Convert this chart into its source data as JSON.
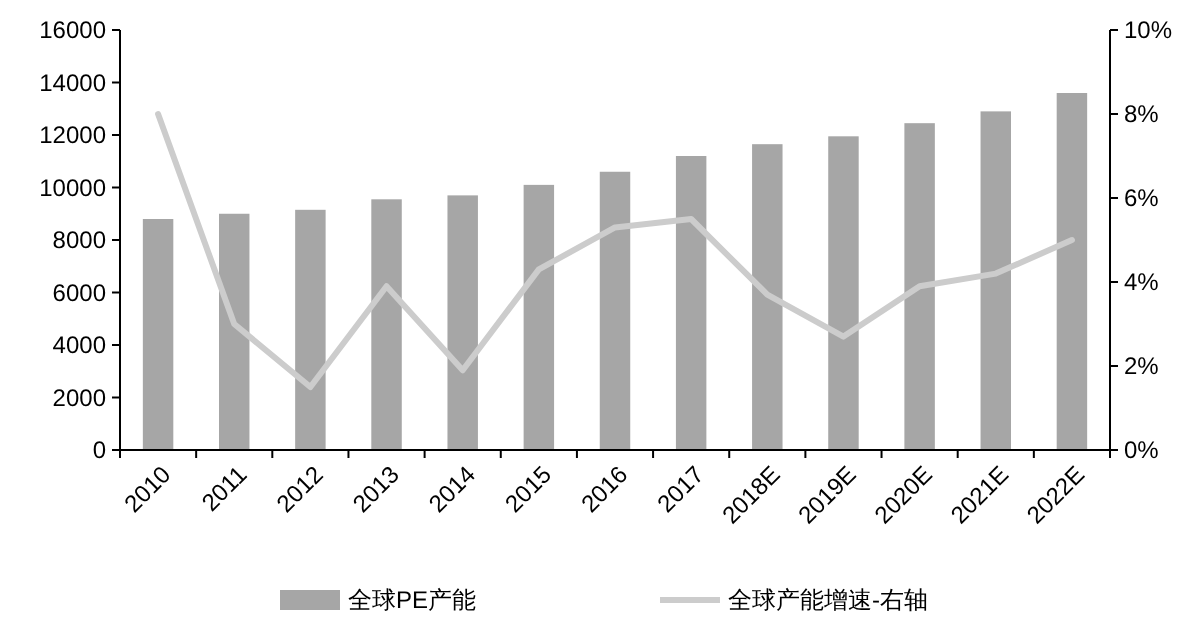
{
  "chart_data": {
    "type": "bar",
    "categories": [
      "2010",
      "2011",
      "2012",
      "2013",
      "2014",
      "2015",
      "2016",
      "2017",
      "2018E",
      "2019E",
      "2020E",
      "2021E",
      "2022E"
    ],
    "series": [
      {
        "name": "全球PE产能",
        "color": "#a6a6a6",
        "values": [
          8800,
          9000,
          9150,
          9550,
          9700,
          10100,
          10600,
          11200,
          11650,
          11950,
          12450,
          12900,
          13600
        ]
      },
      {
        "name": "全球产能增速-右轴",
        "type": "line",
        "axis": "y2",
        "color": "#cccccc",
        "values": [
          8.0,
          3.0,
          1.5,
          3.9,
          1.9,
          4.3,
          5.3,
          5.5,
          3.7,
          2.7,
          3.9,
          4.2,
          5.0
        ]
      }
    ],
    "ylim": [
      0,
      16000
    ],
    "yticks": [
      0,
      2000,
      4000,
      6000,
      8000,
      10000,
      12000,
      14000,
      16000
    ],
    "y2lim": [
      0,
      10
    ],
    "y2ticks": [
      {
        "value": 0,
        "label": "0%"
      },
      {
        "value": 2,
        "label": "2%"
      },
      {
        "value": 4,
        "label": "4%"
      },
      {
        "value": 6,
        "label": "6%"
      },
      {
        "value": 8,
        "label": "8%"
      },
      {
        "value": 10,
        "label": "10%"
      }
    ],
    "grid": false,
    "legend": "bottom",
    "marker": "none",
    "line_style": "solid"
  }
}
